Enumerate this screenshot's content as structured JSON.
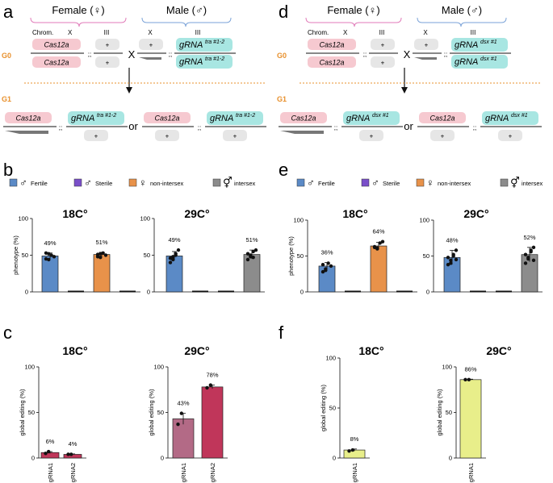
{
  "panels": {
    "a": "a",
    "b": "b",
    "c": "c",
    "d": "d",
    "e": "e",
    "f": "f"
  },
  "colors": {
    "fertile": "#5b8ac6",
    "sterile": "#7a4fc9",
    "nonintersex": "#e8924a",
    "intersex": "#8c8c8c",
    "editing_tra": "#c0365a",
    "editing_tra_light": "#b36a86",
    "editing_dsx": "#e8ee8a",
    "cas12a_box": "#f6c9d0",
    "grna_box": "#a8e6e2",
    "plus_box": "#e6e6e6",
    "female_brace": "#e07ab8",
    "male_brace": "#7aa2d8",
    "generation": "#e8902c"
  },
  "cross_a": {
    "female_header": "Female (♀)",
    "male_header": "Male (♂)",
    "chrom_label": "Chrom.",
    "x_label": "X",
    "iii_label": "III",
    "g0": "G0",
    "g1": "G1",
    "cas12a": "Cas12a",
    "plus": "+",
    "semicolons": ";;",
    "cross": "X",
    "or": "or",
    "grna": "gRNA",
    "grna_sup": "tra #1-2"
  },
  "cross_d": {
    "female_header": "Female (♀)",
    "male_header": "Male (♂)",
    "chrom_label": "Chrom.",
    "x_label": "X",
    "iii_label": "III",
    "g0": "G0",
    "g1": "G1",
    "cas12a": "Cas12a",
    "plus": "+",
    "semicolons": ";;",
    "cross": "X",
    "or": "or",
    "grna": "gRNA",
    "grna_sup": "dsx #1"
  },
  "legend": [
    {
      "symbol": "♂",
      "label": "Fertile",
      "color_key": "fertile"
    },
    {
      "symbol": "♂",
      "label": "Sterile",
      "color_key": "sterile"
    },
    {
      "symbol": "♀",
      "label": "non-intersex",
      "color_key": "nonintersex"
    },
    {
      "symbol": "⚥",
      "label": "intersex",
      "color_key": "intersex"
    }
  ],
  "chart_data": [
    {
      "id": "b-18",
      "type": "bar",
      "title": "18C°",
      "ylabel": "phenotype (%)",
      "ylim": [
        0,
        100
      ],
      "yticks": [
        0,
        50,
        100
      ],
      "categories": [
        "Fertile",
        "Sterile",
        "non-intersex",
        "intersex"
      ],
      "values": [
        49,
        0,
        51,
        0
      ],
      "errors": [
        4,
        0,
        3,
        0
      ],
      "labels": [
        "49%",
        "",
        "51%",
        ""
      ],
      "points": [
        [
          45,
          52,
          50,
          48,
          53,
          44
        ],
        [
          0,
          0,
          0,
          0,
          0
        ],
        [
          48,
          52,
          53,
          50,
          51,
          47
        ],
        [
          0,
          0,
          0,
          0,
          0
        ]
      ]
    },
    {
      "id": "b-29",
      "type": "bar",
      "title": "29C°",
      "ylabel": "",
      "ylim": [
        0,
        100
      ],
      "yticks": [
        0,
        50,
        100
      ],
      "categories": [
        "Fertile",
        "Sterile",
        "non-intersex",
        "intersex"
      ],
      "values": [
        49,
        0,
        0,
        51
      ],
      "errors": [
        6,
        0,
        0,
        6
      ],
      "labels": [
        "49%",
        "",
        "",
        "51%"
      ],
      "points": [
        [
          40,
          48,
          52,
          57,
          46,
          44,
          50
        ],
        [
          0,
          0,
          0,
          0,
          0
        ],
        [
          0,
          0,
          0,
          0,
          0
        ],
        [
          44,
          50,
          55,
          57,
          52,
          48,
          47
        ]
      ]
    },
    {
      "id": "e-18",
      "type": "bar",
      "title": "18C°",
      "ylabel": "phenotype (%)",
      "ylim": [
        0,
        100
      ],
      "yticks": [
        0,
        50,
        100
      ],
      "categories": [
        "Fertile",
        "Sterile",
        "non-intersex",
        "intersex"
      ],
      "values": [
        36,
        0,
        64,
        0
      ],
      "errors": [
        5,
        0,
        5,
        0
      ],
      "labels": [
        "36%",
        "",
        "64%",
        ""
      ],
      "points": [
        [
          28,
          32,
          40,
          36,
          38,
          30
        ],
        [
          0,
          0,
          0,
          0,
          0
        ],
        [
          62,
          60,
          68,
          70,
          63,
          61
        ],
        [
          0,
          0,
          0,
          0,
          0
        ]
      ]
    },
    {
      "id": "e-29",
      "type": "bar",
      "title": "29C°",
      "ylabel": "",
      "ylim": [
        0,
        100
      ],
      "yticks": [
        0,
        50,
        100
      ],
      "categories": [
        "Fertile",
        "Sterile",
        "non-intersex",
        "intersex"
      ],
      "values": [
        48,
        0,
        0,
        52
      ],
      "errors": [
        10,
        0,
        0,
        10
      ],
      "labels": [
        "48%",
        "",
        "",
        "52%"
      ],
      "points": [
        [
          38,
          44,
          52,
          58,
          48,
          40,
          50,
          45
        ],
        [
          0,
          0,
          0,
          0,
          0
        ],
        [
          0,
          0,
          0,
          0,
          0
        ],
        [
          40,
          48,
          56,
          62,
          52,
          46,
          58,
          44
        ]
      ]
    },
    {
      "id": "c-18",
      "type": "bar",
      "title": "18C°",
      "ylabel": "global editing (%)",
      "ylim": [
        0,
        100
      ],
      "yticks": [
        0,
        50,
        100
      ],
      "categories": [
        "gRNA1",
        "gRNA2"
      ],
      "values": [
        6,
        4
      ],
      "errors": [
        1,
        0.5
      ],
      "labels": [
        "6%",
        "4%"
      ],
      "points": [
        [
          5,
          7
        ],
        [
          4,
          4
        ]
      ]
    },
    {
      "id": "c-29",
      "type": "bar",
      "title": "29C°",
      "ylabel": "global editing (%)",
      "ylim": [
        0,
        100
      ],
      "yticks": [
        0,
        50,
        100
      ],
      "categories": [
        "gRNA1",
        "gRNA2"
      ],
      "values": [
        43,
        78
      ],
      "errors": [
        6,
        2
      ],
      "labels": [
        "43%",
        "78%"
      ],
      "points": [
        [
          37,
          49
        ],
        [
          77,
          80
        ]
      ]
    },
    {
      "id": "f-18",
      "type": "bar",
      "title": "18C°",
      "ylabel": "global editing (%)",
      "ylim": [
        0,
        100
      ],
      "yticks": [
        0,
        50,
        100
      ],
      "categories": [
        "gRNA1"
      ],
      "values": [
        8
      ],
      "errors": [
        1
      ],
      "labels": [
        "8%"
      ],
      "points": [
        [
          7,
          8
        ]
      ]
    },
    {
      "id": "f-29",
      "type": "bar",
      "title": "29C°",
      "ylabel": "global editing (%)",
      "ylim": [
        0,
        100
      ],
      "yticks": [
        0,
        50,
        100
      ],
      "categories": [
        "gRNA1"
      ],
      "values": [
        86
      ],
      "errors": [
        0.5
      ],
      "labels": [
        "86%"
      ],
      "points": [
        [
          86,
          86
        ]
      ]
    }
  ]
}
